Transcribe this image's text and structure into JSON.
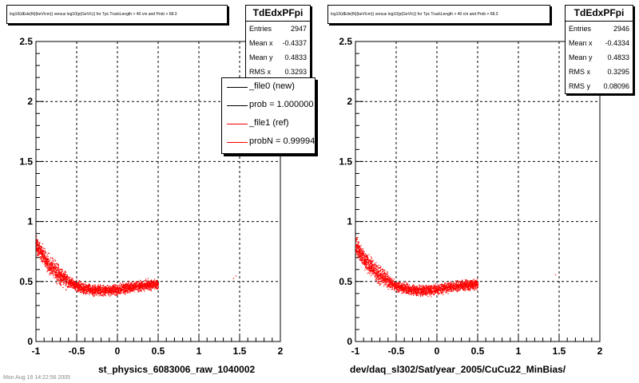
{
  "chart_data": [
    {
      "type": "scatter",
      "title": "log10(dEdx(fit)(keV/cm)) versus log10(p(GeV/c)) for Tpc TrackLength > 40 cm and Prob > 68.3",
      "xlabel": "st_physics_6083006_raw_1040002",
      "ylabel": "",
      "xlim": [
        -1,
        2
      ],
      "ylim": [
        0,
        2.5
      ],
      "xticks": [
        "-1",
        "-0.5",
        "0",
        "0.5",
        "1",
        "1.5",
        "2"
      ],
      "yticks": [
        "0",
        "0.5",
        "1",
        "1.5",
        "2",
        "2.5"
      ],
      "grid": true,
      "stats": {
        "name": "TdEdxPFpi",
        "rows": [
          {
            "label": "Entries",
            "value": "2947"
          },
          {
            "label": "Mean x",
            "value": "-0.4337"
          },
          {
            "label": "Mean y",
            "value": "0.4833"
          },
          {
            "label": "RMS x",
            "value": "0.3293"
          }
        ]
      },
      "legend": {
        "position": "top-right",
        "entries": [
          {
            "label": "_file0 (new)",
            "color": "#000000"
          },
          {
            "label": "prob = 1.000000",
            "color": "#000000"
          },
          {
            "label": "_file1 (ref)",
            "color": "#ff0000"
          },
          {
            "label": "probN = 0.999940",
            "color": "#ff0000"
          }
        ]
      },
      "series": [
        {
          "color": "#ff0000",
          "band": [
            [
              -1.0,
              0.8
            ],
            [
              -0.85,
              0.65
            ],
            [
              -0.7,
              0.55
            ],
            [
              -0.5,
              0.46
            ],
            [
              -0.3,
              0.43
            ],
            [
              -0.1,
              0.43
            ],
            [
              0.1,
              0.45
            ],
            [
              0.3,
              0.47
            ],
            [
              0.5,
              0.48
            ]
          ],
          "spread": 0.04,
          "count": 2947,
          "outliers": [
            [
              1.45,
              0.55
            ],
            [
              1.42,
              0.53
            ]
          ]
        }
      ]
    },
    {
      "type": "scatter",
      "title": "log10(dEdx(fit)(keV/cm)) versus log10(p(GeV/c)) for Tpc TrackLength > 40 cm and Prob > 68.3",
      "xlabel": "dev/daq_sl302/Sat/year_2005/CuCu22_MinBias/",
      "ylabel": "",
      "xlim": [
        -1,
        2
      ],
      "ylim": [
        0,
        2.5
      ],
      "xticks": [
        "-1",
        "-0.5",
        "0",
        "0.5",
        "1",
        "1.5",
        "2"
      ],
      "yticks": [
        "0",
        "0.5",
        "1",
        "1.5",
        "2",
        "2.5"
      ],
      "grid": true,
      "stats": {
        "name": "TdEdxPFpi",
        "rows": [
          {
            "label": "Entries",
            "value": "2946"
          },
          {
            "label": "Mean x",
            "value": "-0.4334"
          },
          {
            "label": "Mean y",
            "value": "0.4833"
          },
          {
            "label": "RMS x",
            "value": "0.3295"
          },
          {
            "label": "RMS y",
            "value": "0.08096"
          }
        ]
      },
      "series": [
        {
          "color": "#ff0000",
          "band": [
            [
              -1.0,
              0.8
            ],
            [
              -0.85,
              0.65
            ],
            [
              -0.7,
              0.55
            ],
            [
              -0.5,
              0.46
            ],
            [
              -0.3,
              0.43
            ],
            [
              -0.1,
              0.43
            ],
            [
              0.1,
              0.45
            ],
            [
              0.3,
              0.47
            ],
            [
              0.5,
              0.48
            ]
          ],
          "spread": 0.04,
          "count": 2946,
          "outliers": [
            [
              1.45,
              0.56
            ]
          ]
        }
      ]
    }
  ],
  "footer_text": "Mon Aug 16 14:22:56 2005"
}
